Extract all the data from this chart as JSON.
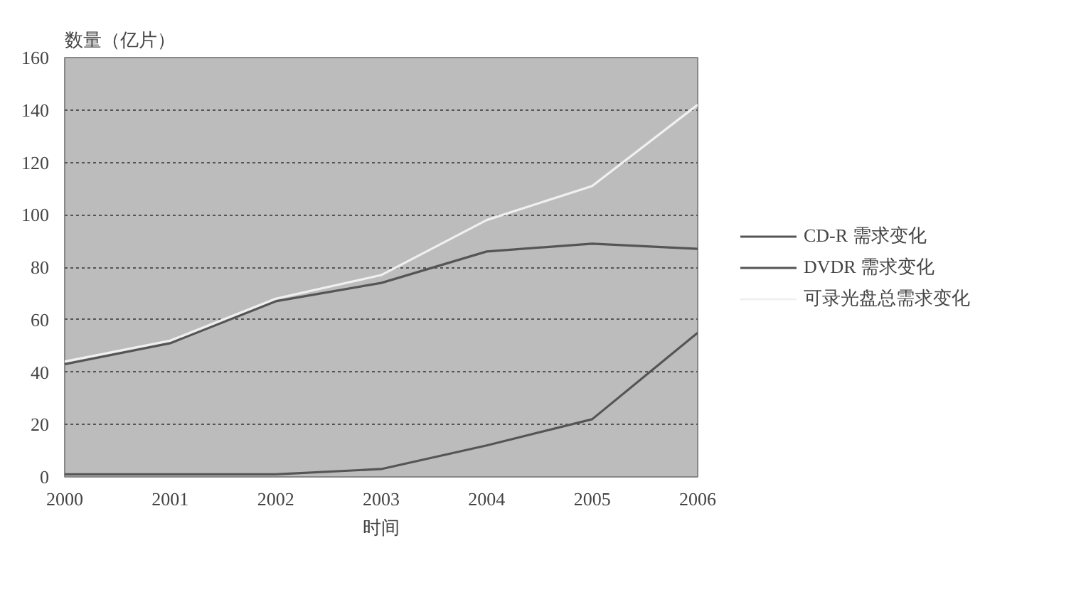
{
  "chart_data": {
    "type": "line",
    "ylabel": "数量（亿片）",
    "xlabel": "时间",
    "x": [
      2000,
      2001,
      2002,
      2003,
      2004,
      2005,
      2006
    ],
    "xlim": [
      2000,
      2006
    ],
    "xticks": [
      2000,
      2001,
      2002,
      2003,
      2004,
      2005,
      2006
    ],
    "ylim": [
      0,
      160
    ],
    "yticks": [
      0,
      20,
      40,
      60,
      80,
      100,
      120,
      140,
      160
    ],
    "grid": "y",
    "legend": "right",
    "line_style": "solid",
    "series": [
      {
        "name": "CD-R 需求变化",
        "color": "#555555",
        "values": [
          43,
          51,
          67,
          74,
          86,
          89,
          87
        ]
      },
      {
        "name": "DVDR 需求变化",
        "color": "#555555",
        "values": [
          1,
          1,
          1,
          3,
          12,
          22,
          55
        ]
      },
      {
        "name": "可录光盘总需求变化",
        "color": "#f0f0f0",
        "values": [
          44,
          52,
          68,
          77,
          98,
          111,
          142
        ]
      }
    ]
  }
}
